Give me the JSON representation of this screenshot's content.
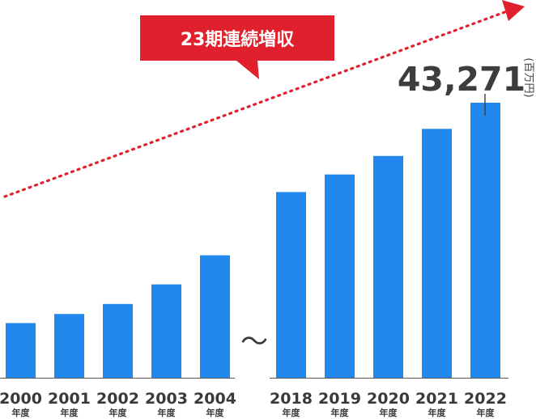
{
  "chart_data": {
    "type": "bar",
    "categories": [
      "2000",
      "2001",
      "2002",
      "2003",
      "2004",
      "2018",
      "2019",
      "2020",
      "2021",
      "2022"
    ],
    "category_suffix": "年度",
    "values": [
      10900,
      12700,
      14700,
      18600,
      24400,
      37000,
      40500,
      44200,
      49600,
      54800
    ],
    "highlight_value_label": "43,271",
    "unit": "百万円",
    "axis_break": "～",
    "callout": "23期連続増収",
    "colors": {
      "bar": "#2288ee",
      "callout": "#e0202c",
      "trend": "#e0202c"
    },
    "grid": false
  }
}
